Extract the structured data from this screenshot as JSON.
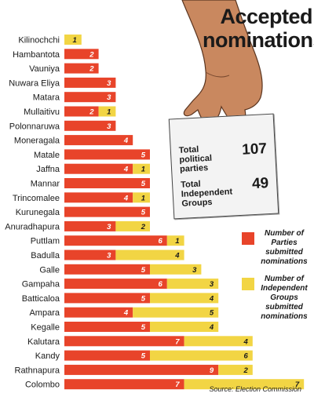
{
  "title_lines": [
    "Accepted",
    "nominations"
  ],
  "summary": {
    "parties_label": "Total political parties",
    "parties_value": "107",
    "groups_label": "Total Independent Groups",
    "groups_value": "49"
  },
  "legend": {
    "parties": "Number of Parties submitted nominations",
    "groups": "Number of Independent Groups submitted nominations"
  },
  "source": "Source: Election Commission",
  "colors": {
    "parties": "#e8442a",
    "groups": "#f2d544",
    "text": "#1a1a1a"
  },
  "chart_data": {
    "type": "bar",
    "orientation": "horizontal",
    "stacked": true,
    "categories": [
      "Kilinochchi",
      "Hambantota",
      "Vauniya",
      "Nuwara Eliya",
      "Matara",
      "Mullaitivu",
      "Polonnaruwa",
      "Moneragala",
      "Matale",
      "Jaffna",
      "Mannar",
      "Trincomalee",
      "Kurunegala",
      "Anuradhapura",
      "Puttlam",
      "Badulla",
      "Galle",
      "Gampaha",
      "Batticaloa",
      "Ampara",
      "Kegalle",
      "Kalutara",
      "Kandy",
      "Rathnapura",
      "Colombo"
    ],
    "series": [
      {
        "name": "Number of Parties submitted nominations",
        "key": "parties",
        "values": [
          null,
          2,
          2,
          3,
          3,
          2,
          3,
          4,
          5,
          4,
          5,
          4,
          5,
          3,
          6,
          3,
          5,
          6,
          5,
          4,
          5,
          7,
          5,
          9,
          7
        ]
      },
      {
        "name": "Number of Independent Groups submitted nominations",
        "key": "groups",
        "values": [
          1,
          null,
          null,
          null,
          null,
          1,
          null,
          null,
          null,
          1,
          null,
          1,
          null,
          2,
          1,
          4,
          3,
          3,
          4,
          5,
          4,
          4,
          6,
          2,
          7
        ]
      }
    ]
  }
}
